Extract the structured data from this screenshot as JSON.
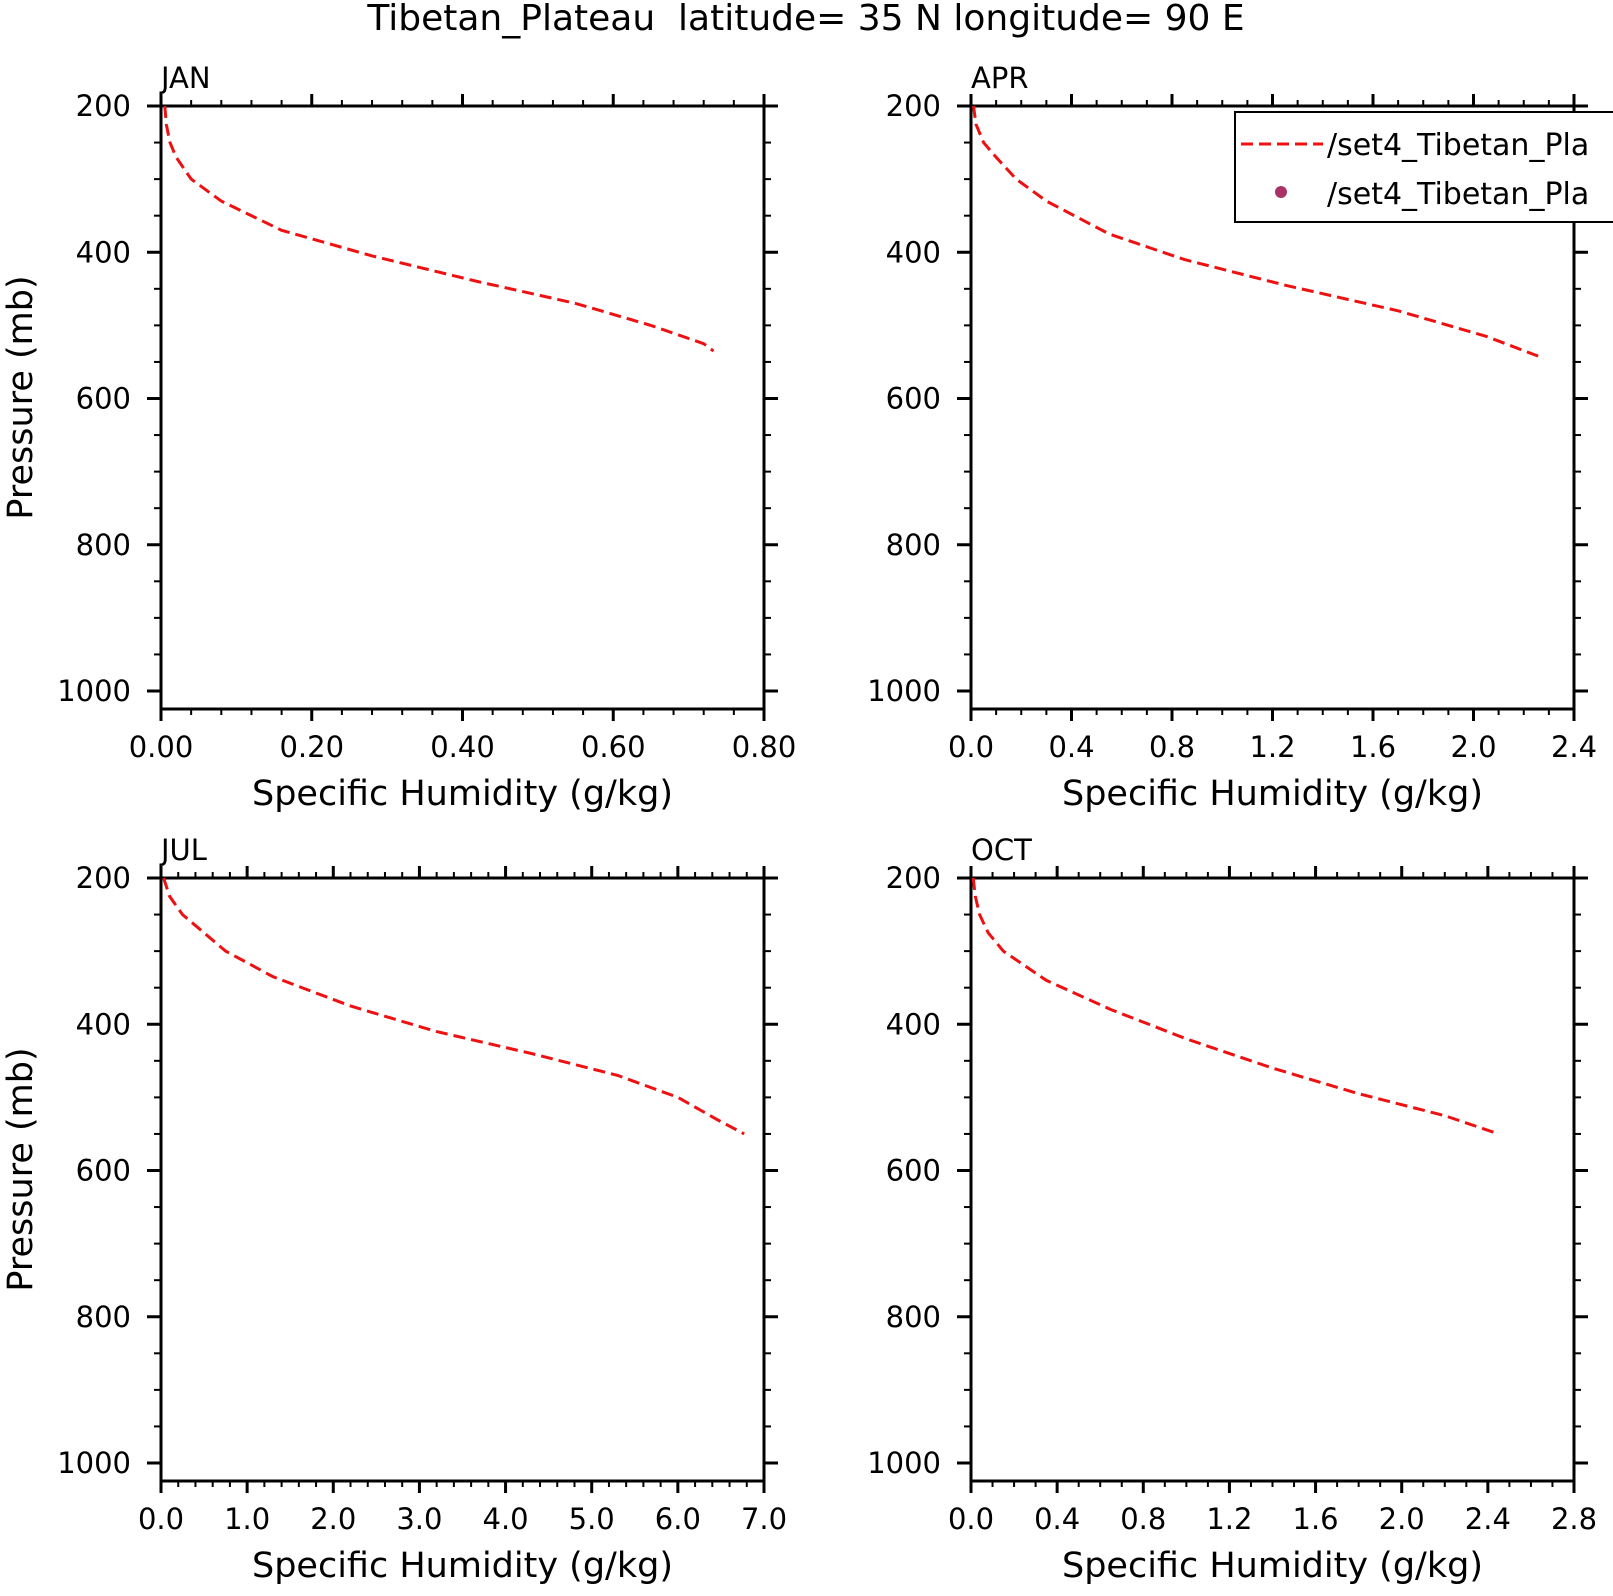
{
  "figure": {
    "title": "Tibetan_Plateau  latitude= 35 N longitude= 90 E"
  },
  "legend": {
    "placement": "top-right of APR panel",
    "entries": [
      {
        "label": "/set4_Tibetan_Pla",
        "style": "dashed-line",
        "color": "#ee1111"
      },
      {
        "label": "/set4_Tibetan_Pla",
        "style": "marker-dot",
        "color": "#aa3366"
      }
    ]
  },
  "chart_data": [
    {
      "type": "line",
      "panel_title": "JAN",
      "xlabel": "Specific Humidity (g/kg)",
      "ylabel": "Pressure (mb)",
      "xlim": [
        0,
        0.8
      ],
      "ylim": [
        200,
        1000
      ],
      "y_inverted": true,
      "x_ticks": [
        0,
        0.2,
        0.4,
        0.6,
        0.8
      ],
      "x_tick_labels": [
        "0.00",
        "0.20",
        "0.40",
        "0.60",
        "0.80"
      ],
      "x_minor_ticks": 4,
      "y_ticks": [
        200,
        400,
        600,
        800,
        1000
      ],
      "y_tick_labels": [
        "200",
        "400",
        "600",
        "800",
        "1000"
      ],
      "series": [
        {
          "style": "dashed",
          "color": "#ee1111",
          "x": [
            0.005,
            0.007,
            0.012,
            0.02,
            0.04,
            0.08,
            0.16,
            0.28,
            0.42,
            0.55,
            0.65,
            0.72,
            0.733
          ],
          "y": [
            200,
            225,
            250,
            270,
            300,
            330,
            370,
            405,
            440,
            470,
            500,
            525,
            535
          ]
        }
      ]
    },
    {
      "type": "line",
      "panel_title": "APR",
      "xlabel": "Specific Humidity (g/kg)",
      "ylabel": "",
      "xlim": [
        0,
        2.4
      ],
      "ylim": [
        200,
        1000
      ],
      "y_inverted": true,
      "x_ticks": [
        0,
        0.4,
        0.8,
        1.2,
        1.6,
        2.0,
        2.4
      ],
      "x_tick_labels": [
        "0.0",
        "0.4",
        "0.8",
        "1.2",
        "1.6",
        "2.0",
        "2.4"
      ],
      "x_minor_ticks": 3,
      "y_ticks": [
        200,
        400,
        600,
        800,
        1000
      ],
      "y_tick_labels": [
        "200",
        "400",
        "600",
        "800",
        "1000"
      ],
      "series": [
        {
          "style": "dashed",
          "color": "#ee1111",
          "x": [
            0.01,
            0.02,
            0.05,
            0.1,
            0.18,
            0.3,
            0.55,
            0.85,
            1.25,
            1.7,
            2.05,
            2.28
          ],
          "y": [
            200,
            225,
            250,
            270,
            300,
            330,
            375,
            410,
            445,
            480,
            515,
            545
          ]
        }
      ]
    },
    {
      "type": "line",
      "panel_title": "JUL",
      "xlabel": "Specific Humidity (g/kg)",
      "ylabel": "Pressure (mb)",
      "xlim": [
        0,
        7
      ],
      "ylim": [
        200,
        1000
      ],
      "y_inverted": true,
      "x_ticks": [
        0,
        1,
        2,
        3,
        4,
        5,
        6,
        7
      ],
      "x_tick_labels": [
        "0.0",
        "1.0",
        "2.0",
        "3.0",
        "4.0",
        "5.0",
        "6.0",
        "7.0"
      ],
      "x_minor_ticks": 4,
      "y_ticks": [
        200,
        400,
        600,
        800,
        1000
      ],
      "y_tick_labels": [
        "200",
        "400",
        "600",
        "800",
        "1000"
      ],
      "series": [
        {
          "style": "dashed",
          "color": "#ee1111",
          "x": [
            0.03,
            0.1,
            0.25,
            0.45,
            0.75,
            1.3,
            2.2,
            3.2,
            4.3,
            5.3,
            6.0,
            6.45,
            6.77
          ],
          "y": [
            200,
            225,
            250,
            270,
            300,
            335,
            375,
            410,
            440,
            470,
            500,
            530,
            550
          ]
        }
      ]
    },
    {
      "type": "line",
      "panel_title": "OCT",
      "xlabel": "Specific Humidity (g/kg)",
      "ylabel": "",
      "xlim": [
        0,
        2.8
      ],
      "ylim": [
        200,
        1000
      ],
      "y_inverted": true,
      "x_ticks": [
        0,
        0.4,
        0.8,
        1.2,
        1.6,
        2.0,
        2.4,
        2.8
      ],
      "x_tick_labels": [
        "0.0",
        "0.4",
        "0.8",
        "1.2",
        "1.6",
        "2.0",
        "2.4",
        "2.8"
      ],
      "x_minor_ticks": 3,
      "y_ticks": [
        200,
        400,
        600,
        800,
        1000
      ],
      "y_tick_labels": [
        "200",
        "400",
        "600",
        "800",
        "1000"
      ],
      "series": [
        {
          "style": "dashed",
          "color": "#ee1111",
          "x": [
            0.01,
            0.02,
            0.04,
            0.08,
            0.15,
            0.35,
            0.65,
            1.0,
            1.4,
            1.8,
            2.2,
            2.45
          ],
          "y": [
            200,
            225,
            250,
            275,
            300,
            340,
            380,
            420,
            460,
            495,
            525,
            550
          ]
        }
      ]
    }
  ]
}
